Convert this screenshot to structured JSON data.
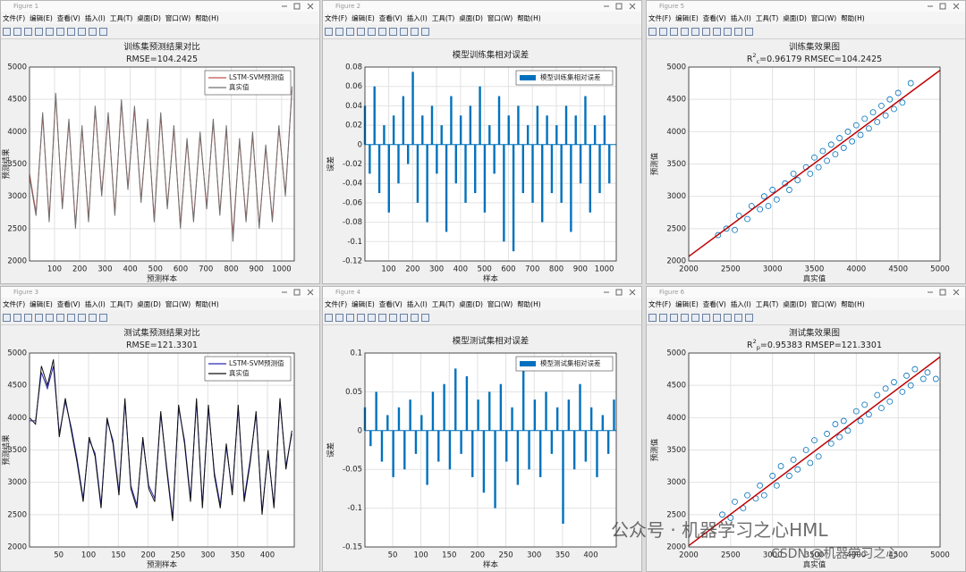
{
  "menu": [
    "文件(F)",
    "编辑(E)",
    "查看(V)",
    "插入(I)",
    "工具(T)",
    "桌面(D)",
    "窗口(W)",
    "帮助(H)"
  ],
  "watermark": [
    "公众号 · 机器学习之心HML",
    "CSDN @机器学习之心"
  ],
  "windows": [
    {
      "title": "Figure 1",
      "chart_data": {
        "type": "line",
        "title": "训练集预测结果对比",
        "subtitle": [
          "RMSE=104.2425"
        ],
        "xlabel": "预测样本",
        "ylabel": "预测结果",
        "x": [
          1,
          27,
          53,
          79,
          105,
          131,
          157,
          183,
          209,
          235,
          261,
          287,
          313,
          339,
          365,
          391,
          417,
          443,
          469,
          495,
          521,
          547,
          573,
          599,
          625,
          651,
          677,
          703,
          729,
          755,
          781,
          807,
          833,
          859,
          885,
          911,
          937,
          963,
          989,
          1015,
          1041
        ],
        "series": [
          {
            "name": "LSTM-SVM预测值",
            "color": "#c0504d",
            "values": [
              3350,
              2750,
              4250,
              2650,
              4550,
              2850,
              4150,
              2550,
              4050,
              2650,
              4350,
              3050,
              4250,
              2750,
              4450,
              3150,
              4350,
              2950,
              4150,
              2650,
              4250,
              2850,
              4050,
              2550,
              3850,
              2650,
              3950,
              2850,
              4150,
              2750,
              4050,
              2400,
              3850,
              2650,
              3950,
              2550,
              3750,
              2650,
              4050,
              3050,
              4650
            ]
          },
          {
            "name": "真实值",
            "color": "#707070",
            "values": [
              3300,
              2700,
              4300,
              2600,
              4600,
              2800,
              4200,
              2500,
              4100,
              2600,
              4400,
              3000,
              4300,
              2700,
              4500,
              3100,
              4400,
              2900,
              4200,
              2600,
              4300,
              2800,
              4100,
              2500,
              3900,
              2600,
              4000,
              2800,
              4200,
              2700,
              4100,
              2300,
              3900,
              2600,
              4000,
              2500,
              3800,
              2600,
              4100,
              3000,
              4700
            ]
          }
        ],
        "xlim": [
          1,
          1050
        ],
        "xticks": [
          100,
          200,
          300,
          400,
          500,
          600,
          700,
          800,
          900,
          1000
        ],
        "ylim": [
          2000,
          5000
        ],
        "yticks": [
          2000,
          2500,
          3000,
          3500,
          4000,
          4500,
          5000
        ],
        "grid": true,
        "legend": "northeast"
      }
    },
    {
      "title": "Figure 2",
      "chart_data": {
        "type": "bar",
        "title": "模型训练集相对误差",
        "xlabel": "样本",
        "ylabel": "误差",
        "x": [
          1,
          21,
          41,
          61,
          81,
          101,
          121,
          141,
          161,
          181,
          201,
          221,
          241,
          261,
          281,
          301,
          321,
          341,
          361,
          381,
          401,
          421,
          441,
          461,
          481,
          501,
          521,
          541,
          561,
          581,
          601,
          621,
          641,
          661,
          681,
          701,
          721,
          741,
          761,
          781,
          801,
          821,
          841,
          861,
          881,
          901,
          921,
          941,
          961,
          981,
          1001,
          1021
        ],
        "series": [
          {
            "name": "模型训练集相对误差",
            "color": "#0072bd",
            "values": [
              0.04,
              -0.03,
              0.06,
              -0.05,
              0.02,
              -0.07,
              0.03,
              -0.04,
              0.05,
              -0.02,
              0.075,
              -0.06,
              0.03,
              -0.08,
              0.04,
              -0.03,
              0.02,
              -0.09,
              0.05,
              -0.04,
              0.03,
              -0.06,
              0.04,
              -0.05,
              0.06,
              -0.07,
              0.02,
              -0.03,
              0.05,
              -0.1,
              0.03,
              -0.11,
              0.04,
              -0.05,
              0.02,
              -0.06,
              0.04,
              -0.08,
              0.03,
              -0.05,
              0.02,
              -0.06,
              0.04,
              -0.09,
              0.03,
              -0.04,
              0.05,
              -0.07,
              0.02,
              -0.05,
              0.03,
              -0.04
            ]
          }
        ],
        "xlim": [
          1,
          1050
        ],
        "xticks": [
          100,
          200,
          300,
          400,
          500,
          600,
          700,
          800,
          900,
          1000
        ],
        "ylim": [
          -0.12,
          0.08
        ],
        "yticks": [
          -0.12,
          -0.1,
          -0.08,
          -0.06,
          -0.04,
          -0.02,
          0,
          0.02,
          0.04,
          0.06,
          0.08
        ],
        "grid": true,
        "legend": "northeast"
      }
    },
    {
      "title": "Figure 5",
      "chart_data": {
        "type": "scatter",
        "title": "训练集效果图",
        "subtitle": [
          "R",
          "2",
          "c",
          "=0.96179  RMSEC=104.2425"
        ],
        "xlabel": "真实值",
        "ylabel": "预测值",
        "x": [
          2350,
          2450,
          2550,
          2600,
          2700,
          2750,
          2850,
          2900,
          2950,
          3000,
          3050,
          3150,
          3200,
          3250,
          3300,
          3400,
          3450,
          3500,
          3550,
          3600,
          3650,
          3700,
          3750,
          3800,
          3850,
          3900,
          3950,
          4000,
          4050,
          4100,
          4150,
          4200,
          4250,
          4300,
          4350,
          4400,
          4450,
          4500,
          4550,
          4650
        ],
        "series": [
          {
            "color": "#0072bd",
            "values": [
              2400,
              2500,
              2480,
              2700,
              2650,
              2850,
              2800,
              3000,
              2850,
              3100,
              2950,
              3200,
              3100,
              3350,
              3250,
              3450,
              3350,
              3600,
              3450,
              3700,
              3550,
              3800,
              3650,
              3900,
              3750,
              4000,
              3850,
              4100,
              3950,
              4200,
              4050,
              4300,
              4150,
              4400,
              4250,
              4500,
              4350,
              4600,
              4450,
              4750
            ]
          }
        ],
        "fit": {
          "x": [
            2000,
            5000
          ],
          "values": [
            2070,
            4950
          ],
          "color": "#c00000"
        },
        "xlim": [
          2000,
          5000
        ],
        "xticks": [
          2000,
          2500,
          3000,
          3500,
          4000,
          4500,
          5000
        ],
        "ylim": [
          2000,
          5000
        ],
        "yticks": [
          2000,
          2500,
          3000,
          3500,
          4000,
          4500,
          5000
        ],
        "grid": true
      }
    },
    {
      "title": "Figure 3",
      "chart_data": {
        "type": "line",
        "title": "测试集预测结果对比",
        "subtitle": [
          "RMSE=121.3301"
        ],
        "xlabel": "预测样本",
        "ylabel": "预测结果",
        "x": [
          1,
          11,
          21,
          31,
          41,
          51,
          61,
          71,
          81,
          91,
          101,
          111,
          121,
          131,
          141,
          151,
          161,
          171,
          181,
          191,
          201,
          211,
          221,
          231,
          241,
          251,
          261,
          271,
          281,
          291,
          301,
          311,
          321,
          331,
          341,
          351,
          361,
          371,
          381,
          391,
          401,
          411,
          421,
          431,
          441
        ],
        "series": [
          {
            "name": "LSTM-SVM预测值",
            "color": "#2a2ab8",
            "values": [
              3950,
              3950,
              4700,
              4450,
              4800,
              3750,
              4250,
              3850,
              3350,
              2750,
              3650,
              3450,
              2650,
              3950,
              3650,
              2850,
              4250,
              2950,
              2650,
              3650,
              2950,
              2750,
              4050,
              3250,
              2450,
              4150,
              3650,
              2750,
              4250,
              2650,
              4150,
              3150,
              2650,
              3550,
              2850,
              4150,
              2750,
              3350,
              4050,
              2550,
              3450,
              2650,
              4250,
              3250,
              3750
            ]
          },
          {
            "name": "真实值",
            "color": "#101010",
            "values": [
              4000,
              3900,
              4800,
              4500,
              4900,
              3700,
              4300,
              3800,
              3300,
              2700,
              3700,
              3400,
              2600,
              4000,
              3600,
              2800,
              4300,
              2900,
              2600,
              3700,
              2900,
              2700,
              4100,
              3200,
              2400,
              4200,
              3600,
              2700,
              4300,
              2600,
              4200,
              3100,
              2600,
              3600,
              2800,
              4200,
              2700,
              3300,
              4100,
              2500,
              3500,
              2600,
              4300,
              3200,
              3800
            ]
          }
        ],
        "xlim": [
          1,
          445
        ],
        "xticks": [
          50,
          100,
          150,
          200,
          250,
          300,
          350,
          400
        ],
        "ylim": [
          2000,
          5000
        ],
        "yticks": [
          2000,
          2500,
          3000,
          3500,
          4000,
          4500,
          5000
        ],
        "grid": true,
        "legend": "northeast"
      }
    },
    {
      "title": "Figure 4",
      "chart_data": {
        "type": "bar",
        "title": "模型测试集相对误差",
        "xlabel": "样本",
        "ylabel": "误差",
        "x": [
          1,
          11,
          21,
          31,
          41,
          51,
          61,
          71,
          81,
          91,
          101,
          111,
          121,
          131,
          141,
          151,
          161,
          171,
          181,
          191,
          201,
          211,
          221,
          231,
          241,
          251,
          261,
          271,
          281,
          291,
          301,
          311,
          321,
          331,
          341,
          351,
          361,
          371,
          381,
          391,
          401,
          411,
          421,
          431,
          441
        ],
        "series": [
          {
            "name": "模型测试集相对误差",
            "color": "#0072bd",
            "values": [
              0.03,
              -0.02,
              0.05,
              -0.04,
              0.02,
              -0.06,
              0.03,
              -0.05,
              0.04,
              -0.03,
              0.02,
              -0.07,
              0.05,
              -0.04,
              0.06,
              -0.05,
              0.08,
              -0.03,
              0.07,
              -0.06,
              0.04,
              -0.08,
              0.05,
              -0.1,
              0.06,
              -0.04,
              0.03,
              -0.07,
              0.08,
              -0.05,
              0.04,
              -0.06,
              0.05,
              -0.03,
              0.03,
              -0.12,
              0.04,
              -0.05,
              0.06,
              -0.04,
              0.03,
              -0.06,
              0.02,
              -0.03,
              0.04
            ]
          }
        ],
        "xlim": [
          1,
          445
        ],
        "xticks": [
          50,
          100,
          150,
          200,
          250,
          300,
          350,
          400
        ],
        "ylim": [
          -0.15,
          0.1
        ],
        "yticks": [
          -0.15,
          -0.1,
          -0.05,
          0,
          0.05,
          0.1
        ],
        "grid": true,
        "legend": "northeast"
      }
    },
    {
      "title": "Figure 6",
      "chart_data": {
        "type": "scatter",
        "title": "测试集效果图",
        "subtitle": [
          "R",
          "2",
          "p",
          "=0.95383  RMSEP=121.3301"
        ],
        "xlabel": "真实值",
        "ylabel": "预测值",
        "x": [
          2400,
          2500,
          2550,
          2650,
          2700,
          2800,
          2850,
          2900,
          3000,
          3050,
          3100,
          3200,
          3250,
          3300,
          3400,
          3450,
          3500,
          3550,
          3650,
          3700,
          3750,
          3800,
          3850,
          3900,
          4000,
          4050,
          4100,
          4150,
          4250,
          4300,
          4350,
          4400,
          4450,
          4550,
          4600,
          4650,
          4700,
          4800,
          4850,
          4950
        ],
        "series": [
          {
            "color": "#0072bd",
            "values": [
              2500,
              2450,
              2700,
              2600,
              2800,
              2750,
              2950,
              2800,
              3100,
              2950,
              3250,
              3100,
              3350,
              3200,
              3500,
              3300,
              3650,
              3400,
              3750,
              3600,
              3900,
              3700,
              3950,
              3800,
              4100,
              3950,
              4200,
              4050,
              4350,
              4150,
              4450,
              4250,
              4550,
              4400,
              4650,
              4500,
              4750,
              4600,
              4700,
              4600
            ]
          }
        ],
        "fit": {
          "x": [
            2000,
            5000
          ],
          "values": [
            2020,
            4940
          ],
          "color": "#c00000"
        },
        "xlim": [
          2000,
          5000
        ],
        "xticks": [
          2000,
          2500,
          3000,
          3500,
          4000,
          4500,
          5000
        ],
        "ylim": [
          2000,
          5000
        ],
        "yticks": [
          2000,
          2500,
          3000,
          3500,
          4000,
          4500,
          5000
        ],
        "grid": true
      }
    }
  ]
}
